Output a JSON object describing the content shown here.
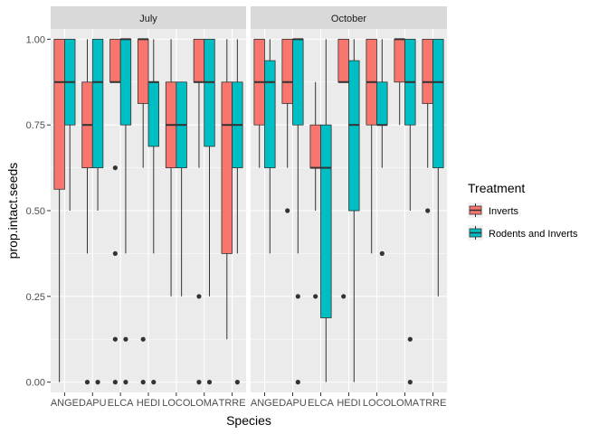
{
  "chart_data": {
    "type": "boxplot",
    "xlabel": "Species",
    "ylabel": "prop.intact.seeds",
    "ylim": [
      -0.03,
      1.03
    ],
    "yticks": [
      "0.00",
      "0.25",
      "0.50",
      "0.75",
      "1.00"
    ],
    "categories": [
      "ANGE",
      "DAPU",
      "ELCA",
      "HEDI",
      "LOCO",
      "LOMA",
      "TRRE"
    ],
    "legend": {
      "title": "Treatment",
      "position": "right",
      "entries": [
        {
          "name": "Inverts",
          "color": "#F8766D"
        },
        {
          "name": "Rodents and Inverts",
          "color": "#00BFC4"
        }
      ]
    },
    "panels": [
      {
        "label": "July",
        "boxes": [
          {
            "category": "ANGE",
            "series": "Inverts",
            "min": 0.0,
            "q1": 0.5625,
            "median": 0.875,
            "q3": 1.0,
            "max": 1.0,
            "outliers": []
          },
          {
            "category": "ANGE",
            "series": "Rodents and Inverts",
            "min": 0.5,
            "q1": 0.75,
            "median": 0.875,
            "q3": 1.0,
            "max": 1.0,
            "outliers": []
          },
          {
            "category": "DAPU",
            "series": "Inverts",
            "min": 0.375,
            "q1": 0.625,
            "median": 0.75,
            "q3": 0.875,
            "max": 1.0,
            "outliers": [
              0.0
            ]
          },
          {
            "category": "DAPU",
            "series": "Rodents and Inverts",
            "min": 0.5,
            "q1": 0.625,
            "median": 0.875,
            "q3": 1.0,
            "max": 1.0,
            "outliers": [
              0.0
            ]
          },
          {
            "category": "ELCA",
            "series": "Inverts",
            "min": 0.875,
            "q1": 0.875,
            "median": 0.875,
            "q3": 1.0,
            "max": 1.0,
            "outliers": [
              0.625,
              0.375,
              0.125,
              0.0
            ]
          },
          {
            "category": "ELCA",
            "series": "Rodents and Inverts",
            "min": 0.375,
            "q1": 0.75,
            "median": 1.0,
            "q3": 1.0,
            "max": 1.0,
            "outliers": [
              0.125,
              0.0
            ]
          },
          {
            "category": "HEDI",
            "series": "Inverts",
            "min": 0.625,
            "q1": 0.8125,
            "median": 1.0,
            "q3": 1.0,
            "max": 1.0,
            "outliers": [
              0.125,
              0.0
            ]
          },
          {
            "category": "HEDI",
            "series": "Rodents and Inverts",
            "min": 0.375,
            "q1": 0.6875,
            "median": 0.875,
            "q3": 0.875,
            "max": 1.0,
            "outliers": [
              0.0
            ]
          },
          {
            "category": "LOCO",
            "series": "Inverts",
            "min": 0.25,
            "q1": 0.625,
            "median": 0.75,
            "q3": 0.875,
            "max": 1.0,
            "outliers": []
          },
          {
            "category": "LOCO",
            "series": "Rodents and Inverts",
            "min": 0.25,
            "q1": 0.625,
            "median": 0.75,
            "q3": 0.875,
            "max": 0.875,
            "outliers": []
          },
          {
            "category": "LOMA",
            "series": "Inverts",
            "min": 0.625,
            "q1": 0.875,
            "median": 0.875,
            "q3": 1.0,
            "max": 1.0,
            "outliers": [
              0.25,
              0.0
            ]
          },
          {
            "category": "LOMA",
            "series": "Rodents and Inverts",
            "min": 0.25,
            "q1": 0.6875,
            "median": 0.875,
            "q3": 1.0,
            "max": 1.0,
            "outliers": [
              0.0
            ]
          },
          {
            "category": "TRRE",
            "series": "Inverts",
            "min": 0.125,
            "q1": 0.375,
            "median": 0.75,
            "q3": 0.875,
            "max": 1.0,
            "outliers": []
          },
          {
            "category": "TRRE",
            "series": "Rodents and Inverts",
            "min": 0.375,
            "q1": 0.625,
            "median": 0.75,
            "q3": 0.875,
            "max": 1.0,
            "outliers": [
              0.0
            ]
          }
        ]
      },
      {
        "label": "October",
        "boxes": [
          {
            "category": "ANGE",
            "series": "Inverts",
            "min": 0.625,
            "q1": 0.75,
            "median": 0.875,
            "q3": 1.0,
            "max": 1.0,
            "outliers": []
          },
          {
            "category": "ANGE",
            "series": "Rodents and Inverts",
            "min": 0.375,
            "q1": 0.625,
            "median": 0.875,
            "q3": 0.9375,
            "max": 1.0,
            "outliers": []
          },
          {
            "category": "DAPU",
            "series": "Inverts",
            "min": 0.625,
            "q1": 0.8125,
            "median": 0.875,
            "q3": 1.0,
            "max": 1.0,
            "outliers": [
              0.5
            ]
          },
          {
            "category": "DAPU",
            "series": "Rodents and Inverts",
            "min": 0.375,
            "q1": 0.75,
            "median": 1.0,
            "q3": 1.0,
            "max": 1.0,
            "outliers": [
              0.25,
              0.0
            ]
          },
          {
            "category": "ELCA",
            "series": "Inverts",
            "min": 0.5,
            "q1": 0.625,
            "median": 0.625,
            "q3": 0.75,
            "max": 0.875,
            "outliers": [
              0.25
            ]
          },
          {
            "category": "ELCA",
            "series": "Rodents and Inverts",
            "min": 0.0,
            "q1": 0.1875,
            "median": 0.625,
            "q3": 0.75,
            "max": 1.0,
            "outliers": []
          },
          {
            "category": "HEDI",
            "series": "Inverts",
            "min": 0.875,
            "q1": 0.875,
            "median": 0.875,
            "q3": 1.0,
            "max": 1.0,
            "outliers": [
              0.25
            ]
          },
          {
            "category": "HEDI",
            "series": "Rodents and Inverts",
            "min": 0.0,
            "q1": 0.5,
            "median": 0.75,
            "q3": 0.9375,
            "max": 1.0,
            "outliers": []
          },
          {
            "category": "LOCO",
            "series": "Inverts",
            "min": 0.375,
            "q1": 0.75,
            "median": 0.875,
            "q3": 1.0,
            "max": 1.0,
            "outliers": []
          },
          {
            "category": "LOCO",
            "series": "Rodents and Inverts",
            "min": 0.625,
            "q1": 0.75,
            "median": 0.75,
            "q3": 0.875,
            "max": 1.0,
            "outliers": [
              0.375
            ]
          },
          {
            "category": "LOMA",
            "series": "Inverts",
            "min": 0.75,
            "q1": 0.875,
            "median": 1.0,
            "q3": 1.0,
            "max": 1.0,
            "outliers": []
          },
          {
            "category": "LOMA",
            "series": "Rodents and Inverts",
            "min": 0.5,
            "q1": 0.75,
            "median": 0.875,
            "q3": 1.0,
            "max": 1.0,
            "outliers": [
              0.125,
              0.0
            ]
          },
          {
            "category": "TRRE",
            "series": "Inverts",
            "min": 0.625,
            "q1": 0.8125,
            "median": 0.875,
            "q3": 1.0,
            "max": 1.0,
            "outliers": [
              0.5
            ]
          },
          {
            "category": "TRRE",
            "series": "Rodents and Inverts",
            "min": 0.25,
            "q1": 0.625,
            "median": 0.875,
            "q3": 1.0,
            "max": 1.0,
            "outliers": []
          }
        ]
      }
    ]
  }
}
